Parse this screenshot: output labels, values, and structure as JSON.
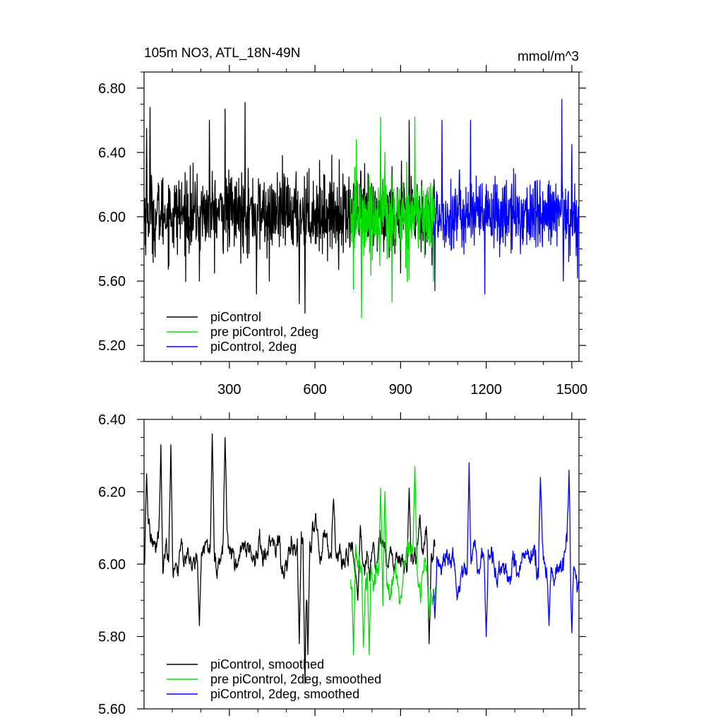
{
  "chart_data": [
    {
      "type": "line",
      "title": "105m NO3, ATL_18N-49N",
      "units": "mmol/m^3",
      "xlim": [
        1,
        1525
      ],
      "ylim": [
        5.1,
        6.9
      ],
      "x_ticks": [
        300,
        600,
        900,
        1200,
        1500
      ],
      "x_tick_labels": [
        "300",
        "600",
        "900",
        "1200",
        "1500"
      ],
      "y_ticks": [
        5.2,
        5.6,
        6.0,
        6.4,
        6.8
      ],
      "y_tick_labels": [
        "5.20",
        "5.60",
        "6.00",
        "6.40",
        "6.80"
      ],
      "legend_position": "bottom-left",
      "series": [
        {
          "name": "piControl",
          "color": "#000000",
          "x_range": [
            1,
            1020
          ],
          "mean": 6.02,
          "amplitude": 0.22,
          "features": [
            [
              10,
              6.55
            ],
            [
              22,
              6.68
            ],
            [
              40,
              5.75
            ],
            [
              195,
              5.6
            ],
            [
              230,
              6.6
            ],
            [
              285,
              6.67
            ],
            [
              355,
              6.71
            ],
            [
              395,
              5.52
            ],
            [
              440,
              5.6
            ],
            [
              545,
              5.46
            ],
            [
              565,
              5.4
            ],
            [
              900,
              5.65
            ],
            [
              930,
              6.6
            ],
            [
              1010,
              5.7
            ]
          ]
        },
        {
          "name": "pre piControl, 2deg",
          "color": "#00e000",
          "x_range": [
            725,
            1022
          ],
          "mean": 6.0,
          "amplitude": 0.22,
          "features": [
            [
              735,
              5.55
            ],
            [
              745,
              6.48
            ],
            [
              763,
              5.37
            ],
            [
              830,
              6.62
            ],
            [
              845,
              6.4
            ],
            [
              870,
              5.47
            ],
            [
              950,
              6.62
            ],
            [
              1015,
              5.6
            ]
          ]
        },
        {
          "name": "piControl, 2deg",
          "color": "#0000ff",
          "x_range": [
            1015,
            1525
          ],
          "mean": 6.01,
          "amplitude": 0.2,
          "features": [
            [
              1020,
              5.54
            ],
            [
              1045,
              6.6
            ],
            [
              1145,
              6.6
            ],
            [
              1195,
              5.52
            ],
            [
              1465,
              6.73
            ],
            [
              1470,
              5.6
            ],
            [
              1500,
              6.45
            ],
            [
              1520,
              5.62
            ]
          ]
        }
      ]
    },
    {
      "type": "line",
      "xlim": [
        1,
        1525
      ],
      "ylim": [
        5.6,
        6.4
      ],
      "x_ticks": [
        300,
        600,
        900,
        1200,
        1500
      ],
      "y_ticks": [
        5.6,
        5.8,
        6.0,
        6.2,
        6.4
      ],
      "y_tick_labels": [
        "5.60",
        "5.80",
        "6.00",
        "6.20",
        "6.40"
      ],
      "legend_position": "bottom-left",
      "series": [
        {
          "name": "piControl, smoothed",
          "color": "#000000",
          "x_range": [
            1,
            1020
          ],
          "mean": 6.03,
          "amplitude": 0.1,
          "features": [
            [
              10,
              6.25
            ],
            [
              60,
              6.33
            ],
            [
              95,
              6.33
            ],
            [
              195,
              5.83
            ],
            [
              240,
              6.36
            ],
            [
              285,
              6.35
            ],
            [
              440,
              6.08
            ],
            [
              545,
              5.78
            ],
            [
              565,
              5.67
            ],
            [
              575,
              5.75
            ],
            [
              665,
              6.18
            ],
            [
              750,
              5.9
            ],
            [
              930,
              6.21
            ],
            [
              1000,
              5.78
            ]
          ]
        },
        {
          "name": "pre piControl, 2deg, smoothed",
          "color": "#00e000",
          "x_range": [
            725,
            1022
          ],
          "mean": 5.97,
          "amplitude": 0.11,
          "features": [
            [
              735,
              5.75
            ],
            [
              770,
              5.77
            ],
            [
              790,
              5.75
            ],
            [
              830,
              6.21
            ],
            [
              845,
              6.2
            ],
            [
              950,
              6.27
            ],
            [
              1000,
              5.85
            ]
          ]
        },
        {
          "name": "piControl, 2deg, smoothed",
          "color": "#0000ff",
          "x_range": [
            1015,
            1525
          ],
          "mean": 5.99,
          "amplitude": 0.1,
          "features": [
            [
              1020,
              5.85
            ],
            [
              1140,
              6.28
            ],
            [
              1200,
              5.8
            ],
            [
              1390,
              6.24
            ],
            [
              1420,
              5.83
            ],
            [
              1490,
              6.26
            ],
            [
              1500,
              5.81
            ]
          ]
        }
      ]
    }
  ]
}
